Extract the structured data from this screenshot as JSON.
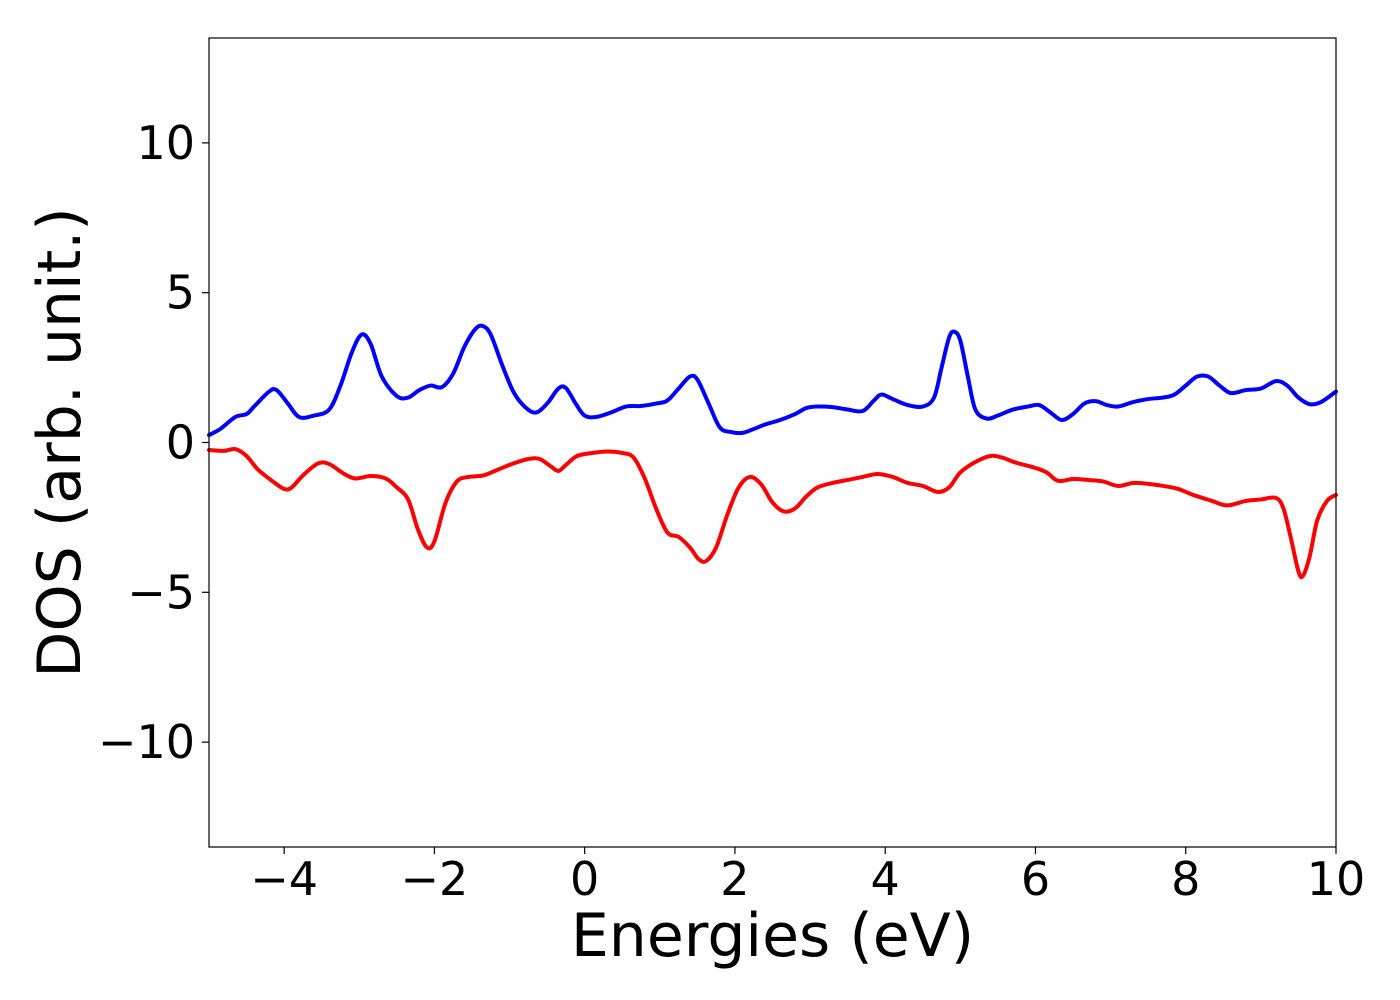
{
  "chart_data": {
    "type": "line",
    "title": "",
    "xlabel": "Energies (eV)",
    "ylabel": "DOS (arb. unit.)",
    "xlim": [
      -5,
      10
    ],
    "ylim": [
      -13.5,
      13.5
    ],
    "grid": false,
    "x_ticks": [
      -4,
      -2,
      0,
      2,
      4,
      6,
      8,
      10
    ],
    "x_tick_labels": [
      "−4",
      "−2",
      "0",
      "2",
      "4",
      "6",
      "8",
      "10"
    ],
    "y_ticks": [
      -10,
      -5,
      0,
      5,
      10
    ],
    "y_tick_labels": [
      "−10",
      "−5",
      "0",
      "5",
      "10"
    ],
    "series": [
      {
        "color": "#0000ff",
        "points": [
          [
            -5.0,
            0.25
          ],
          [
            -4.85,
            0.45
          ],
          [
            -4.65,
            0.85
          ],
          [
            -4.5,
            0.95
          ],
          [
            -4.4,
            1.2
          ],
          [
            -4.2,
            1.7
          ],
          [
            -4.1,
            1.75
          ],
          [
            -3.95,
            1.3
          ],
          [
            -3.8,
            0.85
          ],
          [
            -3.6,
            0.9
          ],
          [
            -3.4,
            1.1
          ],
          [
            -3.25,
            1.9
          ],
          [
            -3.1,
            3.0
          ],
          [
            -2.97,
            3.6
          ],
          [
            -2.85,
            3.3
          ],
          [
            -2.7,
            2.2
          ],
          [
            -2.5,
            1.55
          ],
          [
            -2.35,
            1.5
          ],
          [
            -2.2,
            1.75
          ],
          [
            -2.05,
            1.9
          ],
          [
            -1.9,
            1.85
          ],
          [
            -1.75,
            2.3
          ],
          [
            -1.6,
            3.2
          ],
          [
            -1.45,
            3.8
          ],
          [
            -1.35,
            3.88
          ],
          [
            -1.25,
            3.6
          ],
          [
            -1.1,
            2.6
          ],
          [
            -0.95,
            1.7
          ],
          [
            -0.8,
            1.2
          ],
          [
            -0.65,
            1.0
          ],
          [
            -0.5,
            1.3
          ],
          [
            -0.35,
            1.8
          ],
          [
            -0.25,
            1.82
          ],
          [
            -0.12,
            1.3
          ],
          [
            0.0,
            0.9
          ],
          [
            0.15,
            0.85
          ],
          [
            0.35,
            1.0
          ],
          [
            0.55,
            1.2
          ],
          [
            0.75,
            1.22
          ],
          [
            0.95,
            1.3
          ],
          [
            1.1,
            1.4
          ],
          [
            1.25,
            1.8
          ],
          [
            1.4,
            2.2
          ],
          [
            1.5,
            2.1
          ],
          [
            1.65,
            1.3
          ],
          [
            1.8,
            0.5
          ],
          [
            1.95,
            0.35
          ],
          [
            2.1,
            0.32
          ],
          [
            2.25,
            0.45
          ],
          [
            2.4,
            0.6
          ],
          [
            2.6,
            0.75
          ],
          [
            2.8,
            0.95
          ],
          [
            2.95,
            1.15
          ],
          [
            3.1,
            1.2
          ],
          [
            3.3,
            1.18
          ],
          [
            3.5,
            1.1
          ],
          [
            3.7,
            1.05
          ],
          [
            3.85,
            1.4
          ],
          [
            3.95,
            1.6
          ],
          [
            4.1,
            1.45
          ],
          [
            4.3,
            1.25
          ],
          [
            4.5,
            1.2
          ],
          [
            4.65,
            1.5
          ],
          [
            4.75,
            2.5
          ],
          [
            4.85,
            3.5
          ],
          [
            4.92,
            3.7
          ],
          [
            5.0,
            3.4
          ],
          [
            5.1,
            2.2
          ],
          [
            5.2,
            1.1
          ],
          [
            5.35,
            0.8
          ],
          [
            5.5,
            0.9
          ],
          [
            5.7,
            1.1
          ],
          [
            5.9,
            1.2
          ],
          [
            6.05,
            1.25
          ],
          [
            6.2,
            1.0
          ],
          [
            6.35,
            0.75
          ],
          [
            6.5,
            0.95
          ],
          [
            6.65,
            1.3
          ],
          [
            6.8,
            1.38
          ],
          [
            6.95,
            1.25
          ],
          [
            7.1,
            1.2
          ],
          [
            7.3,
            1.35
          ],
          [
            7.5,
            1.45
          ],
          [
            7.7,
            1.5
          ],
          [
            7.85,
            1.6
          ],
          [
            8.0,
            1.9
          ],
          [
            8.15,
            2.2
          ],
          [
            8.3,
            2.2
          ],
          [
            8.45,
            1.9
          ],
          [
            8.6,
            1.65
          ],
          [
            8.8,
            1.75
          ],
          [
            9.0,
            1.8
          ],
          [
            9.2,
            2.05
          ],
          [
            9.35,
            1.9
          ],
          [
            9.5,
            1.5
          ],
          [
            9.65,
            1.28
          ],
          [
            9.8,
            1.35
          ],
          [
            10.0,
            1.7
          ]
        ]
      },
      {
        "color": "#ff0000",
        "points": [
          [
            -5.0,
            -0.25
          ],
          [
            -4.8,
            -0.28
          ],
          [
            -4.65,
            -0.22
          ],
          [
            -4.5,
            -0.45
          ],
          [
            -4.35,
            -0.9
          ],
          [
            -4.15,
            -1.3
          ],
          [
            -4.0,
            -1.55
          ],
          [
            -3.9,
            -1.5
          ],
          [
            -3.75,
            -1.1
          ],
          [
            -3.55,
            -0.7
          ],
          [
            -3.4,
            -0.72
          ],
          [
            -3.2,
            -1.05
          ],
          [
            -3.05,
            -1.2
          ],
          [
            -2.85,
            -1.12
          ],
          [
            -2.65,
            -1.2
          ],
          [
            -2.5,
            -1.5
          ],
          [
            -2.35,
            -1.9
          ],
          [
            -2.22,
            -2.9
          ],
          [
            -2.1,
            -3.5
          ],
          [
            -2.0,
            -3.3
          ],
          [
            -1.85,
            -2.0
          ],
          [
            -1.7,
            -1.3
          ],
          [
            -1.55,
            -1.15
          ],
          [
            -1.35,
            -1.1
          ],
          [
            -1.15,
            -0.9
          ],
          [
            -0.95,
            -0.7
          ],
          [
            -0.75,
            -0.55
          ],
          [
            -0.6,
            -0.55
          ],
          [
            -0.45,
            -0.8
          ],
          [
            -0.35,
            -0.95
          ],
          [
            -0.25,
            -0.75
          ],
          [
            -0.1,
            -0.45
          ],
          [
            0.1,
            -0.35
          ],
          [
            0.3,
            -0.3
          ],
          [
            0.5,
            -0.35
          ],
          [
            0.65,
            -0.5
          ],
          [
            0.8,
            -1.2
          ],
          [
            0.95,
            -2.2
          ],
          [
            1.1,
            -3.0
          ],
          [
            1.25,
            -3.15
          ],
          [
            1.4,
            -3.5
          ],
          [
            1.52,
            -3.9
          ],
          [
            1.62,
            -3.95
          ],
          [
            1.75,
            -3.5
          ],
          [
            1.9,
            -2.4
          ],
          [
            2.05,
            -1.5
          ],
          [
            2.2,
            -1.15
          ],
          [
            2.35,
            -1.4
          ],
          [
            2.5,
            -2.0
          ],
          [
            2.65,
            -2.3
          ],
          [
            2.8,
            -2.2
          ],
          [
            2.95,
            -1.8
          ],
          [
            3.1,
            -1.5
          ],
          [
            3.3,
            -1.35
          ],
          [
            3.5,
            -1.25
          ],
          [
            3.7,
            -1.15
          ],
          [
            3.9,
            -1.05
          ],
          [
            4.1,
            -1.15
          ],
          [
            4.3,
            -1.35
          ],
          [
            4.5,
            -1.45
          ],
          [
            4.7,
            -1.65
          ],
          [
            4.85,
            -1.5
          ],
          [
            5.0,
            -1.0
          ],
          [
            5.2,
            -0.65
          ],
          [
            5.4,
            -0.45
          ],
          [
            5.55,
            -0.5
          ],
          [
            5.75,
            -0.68
          ],
          [
            6.0,
            -0.85
          ],
          [
            6.15,
            -1.0
          ],
          [
            6.3,
            -1.28
          ],
          [
            6.5,
            -1.22
          ],
          [
            6.7,
            -1.25
          ],
          [
            6.9,
            -1.3
          ],
          [
            7.1,
            -1.45
          ],
          [
            7.3,
            -1.35
          ],
          [
            7.5,
            -1.38
          ],
          [
            7.7,
            -1.45
          ],
          [
            7.9,
            -1.55
          ],
          [
            8.1,
            -1.75
          ],
          [
            8.35,
            -1.95
          ],
          [
            8.55,
            -2.1
          ],
          [
            8.8,
            -1.95
          ],
          [
            9.0,
            -1.9
          ],
          [
            9.2,
            -1.85
          ],
          [
            9.3,
            -2.2
          ],
          [
            9.4,
            -3.2
          ],
          [
            9.5,
            -4.3
          ],
          [
            9.56,
            -4.45
          ],
          [
            9.65,
            -3.8
          ],
          [
            9.75,
            -2.6
          ],
          [
            9.88,
            -1.95
          ],
          [
            10.0,
            -1.75
          ]
        ]
      }
    ]
  }
}
